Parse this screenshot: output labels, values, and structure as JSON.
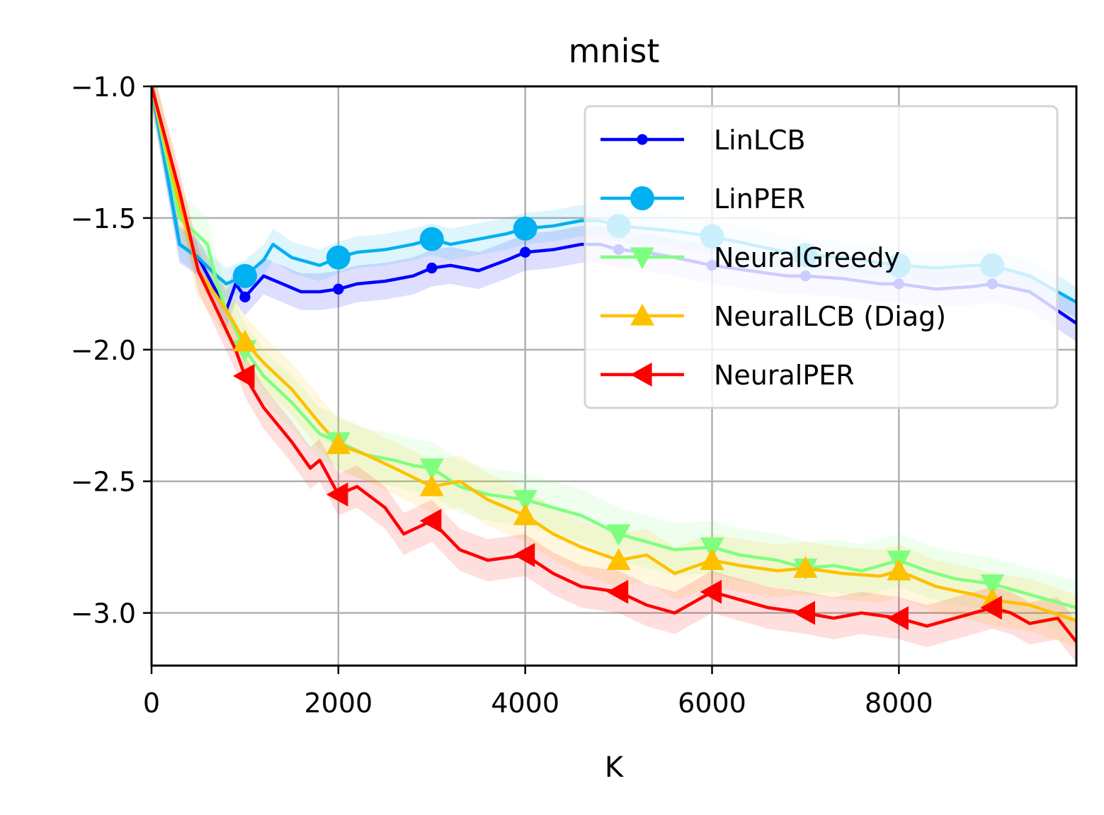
{
  "chart_data": {
    "type": "line",
    "title": "mnist",
    "xlabel": "K",
    "ylabel": "",
    "xlim": [
      0,
      9900
    ],
    "ylim": [
      -3.2,
      -1.0
    ],
    "xticks": [
      0,
      2000,
      4000,
      6000,
      8000
    ],
    "xtick_labels": [
      "0",
      "2000",
      "4000",
      "6000",
      "8000"
    ],
    "yticks": [
      -1.0,
      -1.5,
      -2.0,
      -2.5,
      -3.0
    ],
    "ytick_labels": [
      "−1.0",
      "−1.5",
      "−2.0",
      "−2.5",
      "−3.0"
    ],
    "grid": true,
    "legend_position": "top-right",
    "series": [
      {
        "name": "LinLCB",
        "color": "#0000ff",
        "marker": "point",
        "band": 0.07,
        "x": [
          0,
          300,
          500,
          800,
          900,
          1000,
          1200,
          1400,
          1600,
          1800,
          2000,
          2200,
          2500,
          2800,
          3000,
          3200,
          3500,
          3800,
          4000,
          4300,
          4600,
          4800,
          5000,
          5300,
          5600,
          6000,
          6400,
          6800,
          7000,
          7400,
          7800,
          8000,
          8400,
          8800,
          9000,
          9400,
          9900
        ],
        "y": [
          -1.0,
          -1.6,
          -1.65,
          -1.85,
          -1.75,
          -1.8,
          -1.72,
          -1.75,
          -1.78,
          -1.78,
          -1.77,
          -1.75,
          -1.74,
          -1.72,
          -1.69,
          -1.68,
          -1.7,
          -1.66,
          -1.63,
          -1.62,
          -1.6,
          -1.6,
          -1.62,
          -1.63,
          -1.65,
          -1.68,
          -1.7,
          -1.72,
          -1.72,
          -1.73,
          -1.75,
          -1.75,
          -1.77,
          -1.76,
          -1.75,
          -1.78,
          -1.9
        ],
        "markers_x": [
          1000,
          2000,
          3000,
          4000,
          5000,
          6000,
          7000,
          8000,
          9000
        ],
        "markers_y": [
          -1.8,
          -1.77,
          -1.69,
          -1.63,
          -1.62,
          -1.68,
          -1.72,
          -1.75,
          -1.75
        ]
      },
      {
        "name": "LinPER",
        "color": "#00b0f0",
        "marker": "circle",
        "band": 0.06,
        "x": [
          0,
          300,
          500,
          700,
          800,
          1000,
          1200,
          1300,
          1500,
          1800,
          2000,
          2200,
          2500,
          2800,
          3000,
          3200,
          3500,
          3800,
          4000,
          4300,
          4600,
          4800,
          5000,
          5300,
          5600,
          6000,
          6400,
          6800,
          7000,
          7400,
          7800,
          8000,
          8400,
          8800,
          9000,
          9400,
          9900
        ],
        "y": [
          -1.0,
          -1.6,
          -1.65,
          -1.72,
          -1.75,
          -1.72,
          -1.66,
          -1.6,
          -1.65,
          -1.68,
          -1.65,
          -1.63,
          -1.62,
          -1.6,
          -1.58,
          -1.6,
          -1.58,
          -1.56,
          -1.54,
          -1.53,
          -1.51,
          -1.51,
          -1.53,
          -1.54,
          -1.55,
          -1.57,
          -1.6,
          -1.63,
          -1.64,
          -1.65,
          -1.67,
          -1.68,
          -1.69,
          -1.68,
          -1.68,
          -1.72,
          -1.82
        ],
        "markers_x": [
          1000,
          2000,
          3000,
          4000,
          5000,
          6000,
          7000,
          8000,
          9000
        ],
        "markers_y": [
          -1.72,
          -1.65,
          -1.58,
          -1.54,
          -1.53,
          -1.57,
          -1.64,
          -1.68,
          -1.68
        ]
      },
      {
        "name": "NeuralGreedy",
        "color": "#7fff7f",
        "marker": "triangle-down",
        "band": 0.1,
        "x": [
          0,
          300,
          600,
          700,
          800,
          1000,
          1200,
          1500,
          1800,
          2000,
          2300,
          2600,
          2800,
          3000,
          3300,
          3600,
          4000,
          4300,
          4600,
          5000,
          5300,
          5600,
          6000,
          6300,
          6700,
          7000,
          7300,
          7600,
          8000,
          8300,
          8600,
          9000,
          9400,
          9900
        ],
        "y": [
          -1.0,
          -1.5,
          -1.6,
          -1.75,
          -1.85,
          -2.0,
          -2.1,
          -2.2,
          -2.32,
          -2.35,
          -2.4,
          -2.42,
          -2.44,
          -2.45,
          -2.52,
          -2.55,
          -2.57,
          -2.6,
          -2.63,
          -2.7,
          -2.73,
          -2.76,
          -2.75,
          -2.78,
          -2.8,
          -2.83,
          -2.82,
          -2.84,
          -2.8,
          -2.84,
          -2.87,
          -2.89,
          -2.93,
          -2.98
        ],
        "markers_x": [
          1000,
          2000,
          3000,
          4000,
          5000,
          6000,
          7000,
          8000,
          9000
        ],
        "markers_y": [
          -2.0,
          -2.35,
          -2.45,
          -2.57,
          -2.7,
          -2.75,
          -2.83,
          -2.8,
          -2.89
        ]
      },
      {
        "name": "NeuralLCB (Diag)",
        "color": "#ffc000",
        "marker": "triangle-up",
        "band": 0.1,
        "x": [
          0,
          300,
          500,
          800,
          1000,
          1200,
          1500,
          1800,
          2000,
          2300,
          2600,
          3000,
          3300,
          3600,
          4000,
          4300,
          4600,
          5000,
          5300,
          5600,
          6000,
          6300,
          6700,
          7000,
          7400,
          7800,
          8000,
          8400,
          8800,
          9000,
          9400,
          9900
        ],
        "y": [
          -1.0,
          -1.45,
          -1.7,
          -1.85,
          -1.97,
          -2.05,
          -2.15,
          -2.28,
          -2.36,
          -2.4,
          -2.45,
          -2.52,
          -2.5,
          -2.57,
          -2.63,
          -2.7,
          -2.75,
          -2.8,
          -2.78,
          -2.85,
          -2.8,
          -2.82,
          -2.84,
          -2.83,
          -2.85,
          -2.86,
          -2.84,
          -2.9,
          -2.93,
          -2.95,
          -2.97,
          -3.03
        ],
        "markers_x": [
          1000,
          2000,
          3000,
          4000,
          5000,
          6000,
          7000,
          8000,
          9000
        ],
        "markers_y": [
          -1.97,
          -2.36,
          -2.52,
          -2.63,
          -2.8,
          -2.8,
          -2.83,
          -2.84,
          -2.95
        ]
      },
      {
        "name": "NeuralPER",
        "color": "#ff0000",
        "marker": "triangle-left",
        "band": 0.08,
        "x": [
          0,
          300,
          500,
          700,
          900,
          1000,
          1200,
          1500,
          1700,
          1800,
          2000,
          2200,
          2500,
          2700,
          3000,
          3300,
          3600,
          4000,
          4300,
          4600,
          5000,
          5300,
          5600,
          6000,
          6300,
          6600,
          7000,
          7300,
          7600,
          8000,
          8300,
          8600,
          9000,
          9200,
          9400,
          9700,
          9900
        ],
        "y": [
          -1.0,
          -1.4,
          -1.7,
          -1.85,
          -2.0,
          -2.1,
          -2.22,
          -2.35,
          -2.45,
          -2.42,
          -2.55,
          -2.52,
          -2.6,
          -2.7,
          -2.65,
          -2.76,
          -2.8,
          -2.78,
          -2.85,
          -2.9,
          -2.92,
          -2.97,
          -3.0,
          -2.92,
          -2.95,
          -2.98,
          -3.0,
          -3.02,
          -3.0,
          -3.02,
          -3.05,
          -3.02,
          -2.98,
          -3.0,
          -3.04,
          -3.02,
          -3.11
        ],
        "markers_x": [
          1000,
          2000,
          3000,
          4000,
          5000,
          6000,
          7000,
          8000,
          9000
        ],
        "markers_y": [
          -2.1,
          -2.55,
          -2.65,
          -2.78,
          -2.92,
          -2.92,
          -3.0,
          -3.02,
          -2.98
        ]
      }
    ]
  }
}
